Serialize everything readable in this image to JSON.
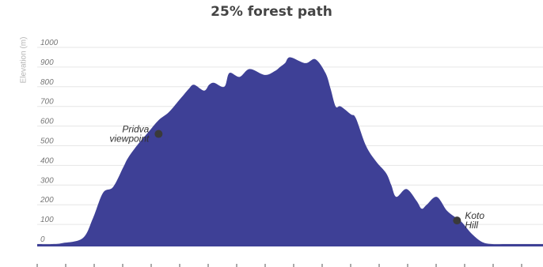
{
  "chart_data": {
    "type": "area",
    "title": "25% forest path",
    "ylabel": "Elevation (m)",
    "xlabel": "",
    "ylim": [
      0,
      1000
    ],
    "yticks": [
      "0",
      "100",
      "200",
      "300",
      "400",
      "500",
      "600",
      "700",
      "800",
      "900",
      "1000"
    ],
    "grid": true,
    "color": "#3e4096",
    "x": [
      0,
      3,
      5,
      9,
      11,
      13,
      15,
      17,
      18,
      20,
      22,
      24,
      26,
      28,
      29,
      30,
      31,
      33,
      34,
      35,
      37,
      38,
      40,
      42,
      45,
      47,
      48,
      49,
      50,
      53,
      55,
      57,
      58,
      59,
      60,
      62,
      63,
      65,
      67,
      69,
      70,
      71,
      73,
      75,
      76,
      77,
      79,
      81,
      83,
      84,
      86,
      88,
      90,
      92,
      94,
      95,
      97,
      98,
      100
    ],
    "values": [
      0,
      0,
      5,
      30,
      130,
      260,
      290,
      390,
      440,
      510,
      570,
      630,
      670,
      730,
      760,
      790,
      810,
      780,
      810,
      820,
      800,
      870,
      850,
      890,
      860,
      880,
      900,
      920,
      950,
      920,
      940,
      870,
      790,
      700,
      700,
      660,
      640,
      500,
      420,
      360,
      300,
      240,
      280,
      220,
      180,
      200,
      240,
      170,
      130,
      110,
      50,
      10,
      0,
      0,
      0,
      0,
      0,
      0,
      0
    ],
    "annotations": [
      {
        "label_lines": [
          "Pridva",
          "viewpoint"
        ],
        "x": 24,
        "y": 560
      },
      {
        "label_lines": [
          "Koto",
          "Hill"
        ],
        "x": 83,
        "y": 120
      }
    ]
  }
}
